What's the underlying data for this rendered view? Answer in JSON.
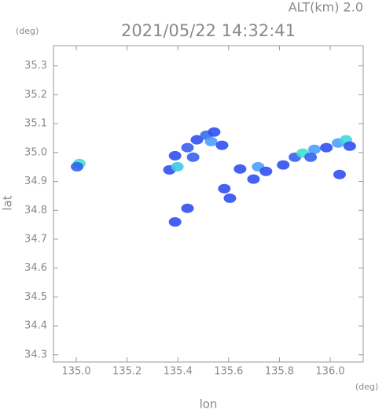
{
  "chart_data": {
    "type": "scatter",
    "title": "2021/05/22 14:32:41",
    "subtitle": "ALT(km) 2.0",
    "x_label": "lon",
    "y_label": "lat",
    "x_unit": "(deg)",
    "y_unit": "(deg)",
    "xlim": [
      134.91,
      136.13
    ],
    "ylim": [
      34.275,
      35.37
    ],
    "xticks": [
      {
        "value": 135,
        "label": "135.0"
      },
      135.2,
      135.4,
      135.6,
      135.8,
      {
        "value": 136,
        "label": "136.0"
      }
    ],
    "yticks": [
      34.3,
      34.4,
      34.5,
      34.6,
      34.7,
      34.8,
      34.9,
      {
        "value": 35,
        "label": "35.0"
      },
      35.1,
      35.2,
      35.3
    ],
    "grid": false,
    "x": [
      135.012,
      135.003,
      135.367,
      135.398,
      135.389,
      135.438,
      135.475,
      135.512,
      135.543,
      135.531,
      135.574,
      135.46,
      135.583,
      135.605,
      135.438,
      135.389,
      135.645,
      135.698,
      135.716,
      135.747,
      135.815,
      135.861,
      135.892,
      135.938,
      135.985,
      136.031,
      136.062,
      136.077,
      136.037,
      135.923
    ],
    "values": [
      34.962,
      34.951,
      34.94,
      34.951,
      34.989,
      35.017,
      35.044,
      35.06,
      35.071,
      35.038,
      35.025,
      34.984,
      34.875,
      34.842,
      34.807,
      34.76,
      34.943,
      34.908,
      34.951,
      34.935,
      34.957,
      34.984,
      34.998,
      35.011,
      35.017,
      35.033,
      35.044,
      35.022,
      34.924,
      34.984
    ],
    "colors": [
      "#40e0d0",
      "#3060f0",
      "#3050f0",
      "#40c8e8",
      "#3050f0",
      "#3a60f0",
      "#3050f0",
      "#3a6cf2",
      "#3050f0",
      "#4aa0ff",
      "#3050f0",
      "#3a60f0",
      "#3050f0",
      "#3050f0",
      "#3050f0",
      "#3050f0",
      "#3050f0",
      "#3050f0",
      "#4aa0ff",
      "#3050f0",
      "#3050f0",
      "#3a60f0",
      "#40e0d0",
      "#4aa0ff",
      "#3050f0",
      "#4aa0ff",
      "#40d8e0",
      "#3050f0",
      "#3050f0",
      "#3a60f0"
    ]
  }
}
